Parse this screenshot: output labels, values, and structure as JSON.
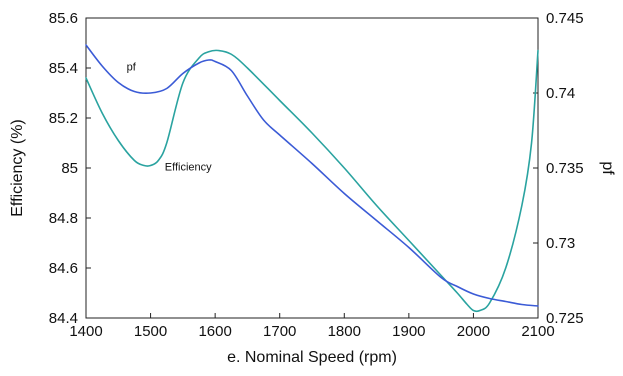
{
  "chart_data": {
    "type": "line",
    "xlabel": "e. Nominal Speed (rpm)",
    "ylabel_left": "Efficiency (%)",
    "ylabel_right": "pf",
    "xlim": [
      1400,
      2100
    ],
    "ylim_left": [
      84.4,
      85.6
    ],
    "ylim_right": [
      0.725,
      0.745
    ],
    "x_ticks": [
      "1400",
      "1500",
      "1600",
      "1700",
      "1800",
      "1900",
      "2000",
      "2100"
    ],
    "y_left_ticks": [
      "84.4",
      "84.6",
      "84.8",
      "85",
      "85.2",
      "85.4",
      "85.6"
    ],
    "y_right_ticks": [
      "0.725",
      "0.73",
      "0.735",
      "0.74",
      "0.745"
    ],
    "grid": false,
    "legend": "none",
    "annotations": [
      {
        "text": "pf",
        "series": "pf"
      },
      {
        "text": "Efficiency",
        "series": "Efficiency"
      }
    ],
    "series": [
      {
        "name": "Efficiency",
        "axis": "left",
        "color": "#2aa3a0",
        "x": [
          1400,
          1425,
          1450,
          1475,
          1490,
          1500,
          1512,
          1525,
          1550,
          1575,
          1590,
          1605,
          1625,
          1650,
          1700,
          1750,
          1800,
          1850,
          1900,
          1950,
          1975,
          1990,
          2000,
          2010,
          2025,
          2050,
          2075,
          2090,
          2100
        ],
        "y": [
          85.36,
          85.22,
          85.11,
          85.03,
          85.01,
          85.01,
          85.03,
          85.1,
          85.34,
          85.44,
          85.465,
          85.47,
          85.455,
          85.4,
          85.27,
          85.14,
          85.0,
          84.85,
          84.71,
          84.57,
          84.5,
          84.455,
          84.43,
          84.43,
          84.46,
          84.6,
          84.85,
          85.1,
          85.47
        ]
      },
      {
        "name": "pf",
        "axis": "right",
        "color": "#3b5bd6",
        "x": [
          1400,
          1425,
          1450,
          1475,
          1500,
          1525,
          1550,
          1575,
          1590,
          1600,
          1625,
          1650,
          1675,
          1700,
          1750,
          1800,
          1850,
          1900,
          1950,
          1975,
          2000,
          2025,
          2050,
          2075,
          2100
        ],
        "y": [
          0.7432,
          0.7418,
          0.7407,
          0.7401,
          0.74,
          0.7403,
          0.7413,
          0.742,
          0.7422,
          0.7421,
          0.7415,
          0.7398,
          0.7382,
          0.7372,
          0.7353,
          0.7333,
          0.7315,
          0.7297,
          0.7277,
          0.7271,
          0.7266,
          0.7263,
          0.7261,
          0.7259,
          0.7258
        ]
      }
    ]
  }
}
